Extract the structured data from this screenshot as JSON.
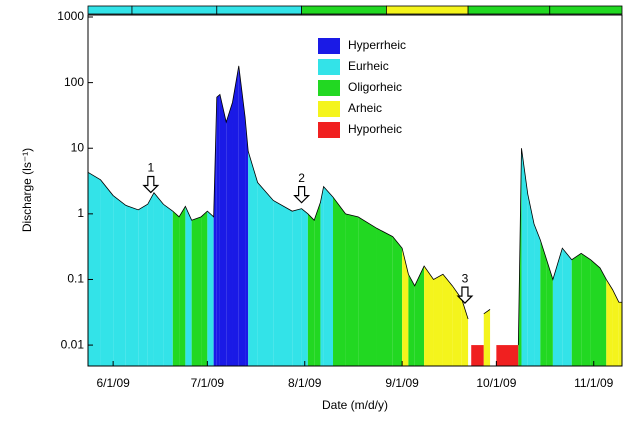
{
  "chart_data": {
    "type": "area",
    "log_y": true,
    "ylabel": "Discharge (ls⁻¹)",
    "xlabel": "Date (m/d/y)",
    "xlim": [
      "5/24/09",
      "11/10/09"
    ],
    "xticks": [
      "6/1/09",
      "7/1/09",
      "8/1/09",
      "9/1/09",
      "10/1/09",
      "11/1/09"
    ],
    "ylim": [
      0.0048,
      1000
    ],
    "yticks": [
      0.01,
      0.1,
      1,
      10,
      100,
      1000
    ],
    "legend": [
      {
        "name": "Hyperrheic",
        "color": "#1a1ae6"
      },
      {
        "name": "Eurheic",
        "color": "#33e3e8"
      },
      {
        "name": "Oligorheic",
        "color": "#22d822"
      },
      {
        "name": "Arheic",
        "color": "#f4f41c"
      },
      {
        "name": "Hyporheic",
        "color": "#f02020"
      }
    ],
    "x": [
      "5/24/09",
      "5/28/09",
      "6/1/09",
      "6/5/09",
      "6/9/09",
      "6/12/09",
      "6/14/09",
      "6/17/09",
      "6/20/09",
      "6/22/09",
      "6/24/09",
      "6/26/09",
      "6/29/09",
      "7/1/09",
      "7/3/09",
      "7/4/09",
      "7/5/09",
      "7/7/09",
      "7/9/09",
      "7/11/09",
      "7/13/09",
      "7/14/09",
      "7/17/09",
      "7/22/09",
      "7/28/09",
      "7/31/09",
      "8/2/09",
      "8/4/09",
      "8/6/09",
      "8/7/09",
      "8/10/09",
      "8/14/09",
      "8/18/09",
      "8/24/09",
      "8/29/09",
      "9/1/09",
      "9/3/09",
      "9/5/09",
      "9/8/09",
      "9/11/09",
      "9/14/09",
      "9/17/09",
      "9/20/09",
      "9/22/09",
      "9/23/09",
      "9/27/09",
      "9/29/09",
      "10/1/09",
      "10/8/09",
      "10/9/09",
      "10/11/09",
      "10/13/09",
      "10/15/09",
      "10/17/09",
      "10/19/09",
      "10/22/09",
      "10/25/09",
      "10/28/09",
      "10/31/09",
      "11/3/09",
      "11/5/09",
      "11/7/09",
      "11/9/09",
      "11/10/09"
    ],
    "values": [
      4.3,
      3.3,
      1.9,
      1.35,
      1.15,
      1.4,
      2.1,
      1.4,
      1.1,
      0.9,
      1.3,
      0.8,
      0.9,
      1.1,
      0.9,
      60,
      66,
      25,
      50,
      180,
      30,
      9,
      3,
      1.6,
      1.1,
      1.2,
      1.0,
      0.8,
      1.5,
      2.6,
      1.8,
      1.0,
      0.9,
      0.6,
      0.45,
      0.3,
      0.12,
      0.08,
      0.16,
      0.1,
      0.12,
      0.08,
      0.05,
      0.025,
      null,
      0.03,
      0.035,
      null,
      0.01,
      10,
      2,
      0.7,
      0.4,
      0.2,
      0.1,
      0.3,
      0.2,
      0.25,
      0.2,
      0.15,
      0.1,
      0.07,
      0.045,
      0.045
    ],
    "regimes": [
      "Eurheic",
      "Eurheic",
      "Eurheic",
      "Eurheic",
      "Eurheic",
      "Eurheic",
      "Eurheic",
      "Eurheic",
      "Oligorheic",
      "Oligorheic",
      "Eurheic",
      "Oligorheic",
      "Oligorheic",
      "Eurheic",
      "Hyperrheic",
      "Hyperrheic",
      "Hyperrheic",
      "Hyperrheic",
      "Hyperrheic",
      "Hyperrheic",
      "Hyperrheic",
      "Eurheic",
      "Eurheic",
      "Eurheic",
      "Eurheic",
      "Eurheic",
      "Oligorheic",
      "Oligorheic",
      "Eurheic",
      "Eurheic",
      "Oligorheic",
      "Oligorheic",
      "Oligorheic",
      "Oligorheic",
      "Oligorheic",
      "Arheic",
      "Oligorheic",
      "Oligorheic",
      "Arheic",
      "Arheic",
      "Arheic",
      "Arheic",
      "Arheic",
      "Arheic",
      "Hyporheic",
      "Arheic",
      "Arheic",
      "Hyporheic",
      "Oligorheic",
      "Eurheic",
      "Eurheic",
      "Eurheic",
      "Oligorheic",
      "Oligorheic",
      "Eurheic",
      "Eurheic",
      "Oligorheic",
      "Oligorheic",
      "Oligorheic",
      "Oligorheic",
      "Arheic",
      "Arheic",
      "Arheic",
      "Arheic"
    ],
    "period_bar": [
      {
        "start": "5/24/09",
        "end": "6/7/09",
        "regime": "Eurheic"
      },
      {
        "start": "6/7/09",
        "end": "7/4/09",
        "regime": "Eurheic"
      },
      {
        "start": "7/4/09",
        "end": "7/31/09",
        "regime": "Eurheic"
      },
      {
        "start": "7/31/09",
        "end": "8/27/09",
        "regime": "Oligorheic"
      },
      {
        "start": "8/27/09",
        "end": "9/22/09",
        "regime": "Arheic"
      },
      {
        "start": "9/22/09",
        "end": "10/18/09",
        "regime": "Oligorheic"
      },
      {
        "start": "10/18/09",
        "end": "11/10/09",
        "regime": "Oligorheic"
      }
    ],
    "annotations": [
      {
        "text": "1",
        "x": "6/13/09"
      },
      {
        "text": "2",
        "x": "7/31/09"
      },
      {
        "text": "3",
        "x": "9/21/09"
      }
    ]
  }
}
